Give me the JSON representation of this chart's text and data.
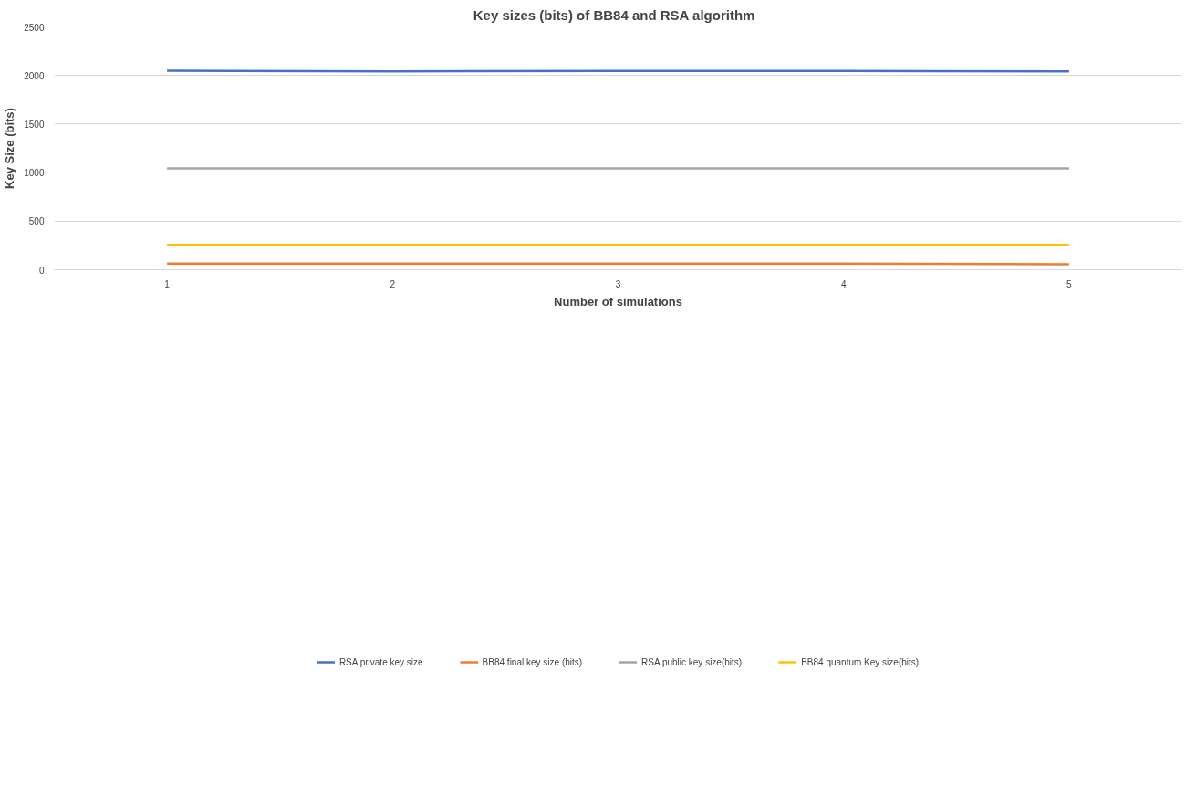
{
  "chart_data": {
    "type": "line",
    "title": "Key sizes  (bits) of BB84 and RSA  algorithm",
    "xlabel": "Number of simulations",
    "ylabel": "Key Size (bits)",
    "categories": [
      "1",
      "2",
      "3",
      "4",
      "5"
    ],
    "series": [
      {
        "name": "RSA private key size",
        "color": "#4472c4",
        "values": [
          2048,
          2042,
          2046,
          2046,
          2041
        ]
      },
      {
        "name": "BB84 final key size (bits)",
        "color": "#ed7d31",
        "values": [
          64,
          63,
          63,
          63,
          57
        ]
      },
      {
        "name": "RSA public key size(bits)",
        "color": "#a5a5a5",
        "values": [
          1044,
          1044,
          1044,
          1044,
          1044
        ]
      },
      {
        "name": "BB84 quantum Key size(bits)",
        "color": "#ffc000",
        "values": [
          256,
          256,
          256,
          256,
          256
        ]
      }
    ],
    "ylim": [
      0,
      2500
    ],
    "yticks": [
      0,
      500,
      1000,
      1500,
      2000,
      2500
    ],
    "grid": "y",
    "legend": "bottom",
    "marker": "none",
    "line_style": "solid"
  }
}
